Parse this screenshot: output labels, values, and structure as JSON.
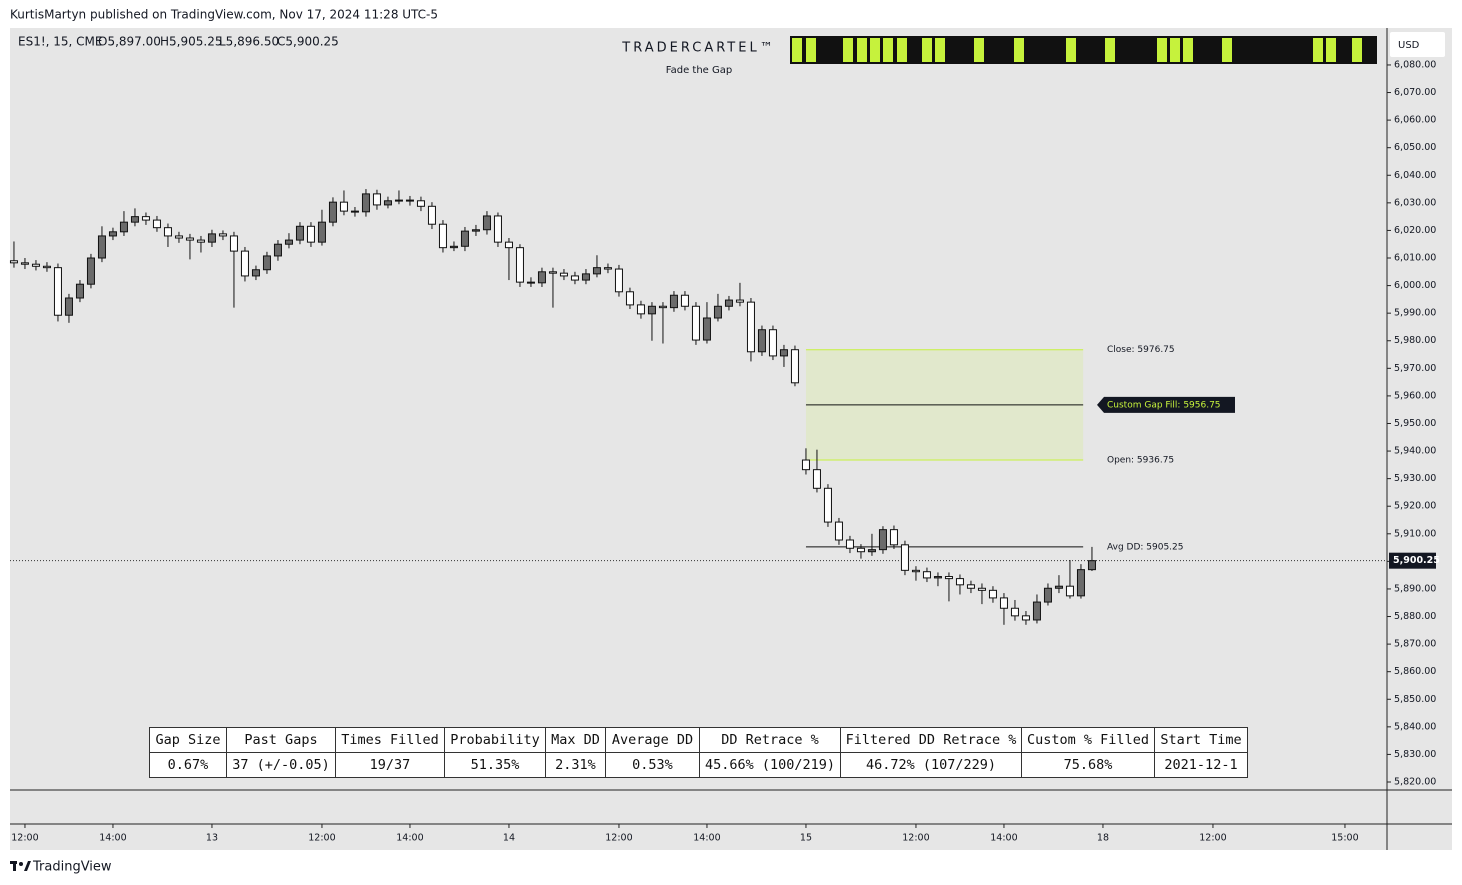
{
  "header": {
    "published": "KurtisMartyn published on TradingView.com, Nov 17, 2024 11:28 UTC-5",
    "brand": "TradingView"
  },
  "chart_data": {
    "type": "candlestick",
    "symbol": "ES1!, 15, CME",
    "ohlc_legend": [
      "O5,897.00",
      "H5,905.25",
      "L5,896.50",
      "C5,900.25"
    ],
    "indicator_title": "TRADERCARTEL™",
    "indicator_subtitle": "Fade the Gap",
    "currency": "USD",
    "up_color": "#6b6b6b",
    "down_color": "#ffffff",
    "zone_color": "#e1e8cc",
    "zone_border": "#c6f23c",
    "open": [
      6009.0,
      6008.25,
      6007.75,
      6007.0,
      6006.5,
      5989.25,
      5995.5,
      6000.5,
      6010.0,
      6018.0,
      6019.5,
      6023.0,
      6025.0,
      6023.75,
      6021.0,
      6018.0,
      6017.25,
      6016.5,
      6015.75,
      6018.75,
      6018.0,
      6012.5,
      6003.5,
      6005.75,
      6010.75,
      6015.0,
      6016.5,
      6021.5,
      6015.75,
      6023.0,
      6030.25,
      6027.0,
      6026.75,
      6033.25,
      6029.25,
      6030.75,
      6031.0,
      6030.75,
      6028.75,
      6022.25,
      6013.75,
      6014.25,
      6019.75,
      6020.25,
      6025.25,
      6015.75,
      6013.75,
      6001.25,
      6001.0,
      6005.0,
      6004.5,
      6003.5,
      6002.0,
      6004.25,
      6006.5,
      6006.0,
      5997.75,
      5993.0,
      5989.75,
      5992.5,
      5992.0,
      5996.5,
      5992.5,
      5980.25,
      5988.25,
      5992.5,
      5994.75,
      5994.0,
      5976.0,
      5984.0,
      5974.5,
      5976.75,
      5936.75,
      5933.25,
      5926.5,
      5914.25,
      5907.75,
      5904.75,
      5903.5,
      5904.25,
      5911.5,
      5906.0,
      5896.75,
      5896.25,
      5894.0,
      5894.5,
      5893.75,
      5891.5,
      5890.25,
      5889.5,
      5886.75,
      5883.0,
      5880.25,
      5878.75,
      5885.25,
      5890.25,
      5891.0,
      5887.5,
      5897.0
    ],
    "high": [
      6016.0,
      6010.0,
      6009.25,
      6008.5,
      6008.0,
      5997.0,
      6002.0,
      6011.5,
      6021.5,
      6021.0,
      6027.0,
      6028.0,
      6026.5,
      6025.25,
      6022.5,
      6019.5,
      6018.75,
      6018.0,
      6020.25,
      6020.0,
      6019.5,
      6014.0,
      6007.25,
      6012.25,
      6016.5,
      6019.0,
      6023.0,
      6023.0,
      6027.5,
      6032.0,
      6034.5,
      6028.5,
      6035.0,
      6034.75,
      6032.25,
      6034.5,
      6032.5,
      6032.25,
      6030.25,
      6023.75,
      6016.0,
      6021.25,
      6022.0,
      6027.0,
      6026.5,
      6017.25,
      6015.0,
      6003.0,
      6006.5,
      6006.5,
      6006.0,
      6005.0,
      6006.0,
      6011.0,
      6008.0,
      6007.5,
      5999.25,
      5994.5,
      5994.0,
      5994.0,
      5998.0,
      5998.0,
      5994.0,
      5994.0,
      5997.0,
      5996.25,
      6001.0,
      5995.5,
      5985.5,
      5985.5,
      5978.5,
      5978.25,
      5941.0,
      5940.5,
      5928.0,
      5915.75,
      5909.25,
      5906.25,
      5910.0,
      5912.75,
      5913.0,
      5907.5,
      5898.25,
      5897.75,
      5896.0,
      5896.0,
      5895.25,
      5893.0,
      5892.0,
      5891.0,
      5888.5,
      5886.0,
      5882.0,
      5888.0,
      5892.0,
      5895.0,
      5900.5,
      5899.0,
      5905.25
    ],
    "low": [
      6006.5,
      6006.0,
      6005.5,
      6005.0,
      5987.0,
      5986.5,
      5994.0,
      5999.0,
      6008.5,
      6016.5,
      6018.0,
      6021.5,
      6022.0,
      6019.5,
      6014.0,
      6015.5,
      6009.5,
      6012.0,
      6014.0,
      6016.5,
      5992.0,
      6001.5,
      6002.0,
      6004.25,
      6009.0,
      6013.5,
      6015.0,
      6014.0,
      6014.5,
      6021.5,
      6025.5,
      6025.0,
      6025.0,
      6027.5,
      6028.0,
      6029.5,
      6029.0,
      6027.0,
      6020.5,
      6012.0,
      6012.5,
      6012.5,
      6018.0,
      6018.5,
      6014.0,
      6002.0,
      5999.5,
      5999.5,
      5999.5,
      5992.0,
      6002.0,
      6000.5,
      6000.5,
      6003.0,
      6004.5,
      5996.0,
      5991.5,
      5988.0,
      5980.0,
      5979.0,
      5990.5,
      5991.0,
      5978.5,
      5979.0,
      5987.0,
      5991.0,
      5992.5,
      5972.5,
      5974.5,
      5973.0,
      5970.5,
      5963.5,
      5931.5,
      5925.0,
      5912.5,
      5906.0,
      5903.0,
      5901.0,
      5902.0,
      5902.75,
      5904.5,
      5895.0,
      5893.0,
      5892.5,
      5891.0,
      5885.5,
      5888.0,
      5888.5,
      5884.5,
      5885.0,
      5877.0,
      5878.5,
      5877.0,
      5877.5,
      5884.0,
      5888.5,
      5886.5,
      5886.5,
      5896.5
    ],
    "close": [
      6008.25,
      6007.75,
      6007.0,
      6006.5,
      5989.25,
      5995.5,
      6000.5,
      6010.0,
      6018.0,
      6019.5,
      6023.0,
      6025.0,
      6023.75,
      6021.0,
      6018.0,
      6017.25,
      6016.5,
      6015.75,
      6018.75,
      6018.0,
      6012.5,
      6003.5,
      6005.75,
      6010.75,
      6015.0,
      6016.5,
      6021.5,
      6015.75,
      6023.0,
      6030.25,
      6027.0,
      6026.75,
      6033.25,
      6029.25,
      6030.75,
      6031.0,
      6030.75,
      6028.75,
      6022.25,
      6013.75,
      6014.25,
      6019.75,
      6020.25,
      6025.25,
      6015.75,
      6013.75,
      6001.25,
      6001.0,
      6005.0,
      6004.5,
      6003.5,
      6002.0,
      6004.25,
      6006.5,
      6006.0,
      5997.75,
      5993.0,
      5989.75,
      5992.5,
      5992.0,
      5996.5,
      5992.5,
      5980.25,
      5988.25,
      5992.5,
      5994.75,
      5994.0,
      5976.0,
      5984.0,
      5974.5,
      5976.75,
      5964.75,
      5933.25,
      5926.5,
      5914.25,
      5907.75,
      5904.75,
      5903.5,
      5904.25,
      5911.5,
      5906.0,
      5896.75,
      5896.25,
      5894.0,
      5894.5,
      5893.75,
      5891.5,
      5890.25,
      5889.5,
      5886.75,
      5883.0,
      5880.25,
      5878.75,
      5885.25,
      5890.25,
      5891.0,
      5887.5,
      5897.0,
      5900.25
    ],
    "xlim": [
      -0.36,
      124.64
    ],
    "xticks": [
      {
        "value": 1,
        "label": "12:00"
      },
      {
        "value": 9,
        "label": "14:00"
      },
      {
        "value": 18,
        "label": "13"
      },
      {
        "value": 28,
        "label": "12:00"
      },
      {
        "value": 36,
        "label": "14:00"
      },
      {
        "value": 45,
        "label": "14"
      },
      {
        "value": 55,
        "label": "12:00"
      },
      {
        "value": 63,
        "label": "14:00"
      },
      {
        "value": 72,
        "label": "15"
      },
      {
        "value": 82,
        "label": "12:00"
      },
      {
        "value": 90,
        "label": "14:00"
      },
      {
        "value": 99,
        "label": "18"
      },
      {
        "value": 109,
        "label": "12:00"
      },
      {
        "value": 121,
        "label": "15:00"
      }
    ],
    "ylim": [
      5817.1,
      6093.4
    ],
    "yticks": [
      {
        "value": 5820,
        "label": "5,820.00"
      },
      {
        "value": 5830,
        "label": "5,830.00"
      },
      {
        "value": 5840,
        "label": "5,840.00"
      },
      {
        "value": 5850,
        "label": "5,850.00"
      },
      {
        "value": 5860,
        "label": "5,860.00"
      },
      {
        "value": 5870,
        "label": "5,870.00"
      },
      {
        "value": 5880,
        "label": "5,880.00"
      },
      {
        "value": 5890,
        "label": "5,890.00"
      },
      {
        "value": 5900,
        "label": "5,900.00"
      },
      {
        "value": 5910,
        "label": "5,910.00"
      },
      {
        "value": 5920,
        "label": "5,920.00"
      },
      {
        "value": 5930,
        "label": "5,930.00"
      },
      {
        "value": 5940,
        "label": "5,940.00"
      },
      {
        "value": 5950,
        "label": "5,950.00"
      },
      {
        "value": 5960,
        "label": "5,960.00"
      },
      {
        "value": 5970,
        "label": "5,970.00"
      },
      {
        "value": 5980,
        "label": "5,980.00"
      },
      {
        "value": 5990,
        "label": "5,990.00"
      },
      {
        "value": 6000,
        "label": "6,000.00"
      },
      {
        "value": 6010,
        "label": "6,010.00"
      },
      {
        "value": 6020,
        "label": "6,020.00"
      },
      {
        "value": 6030,
        "label": "6,030.00"
      },
      {
        "value": 6040,
        "label": "6,040.00"
      },
      {
        "value": 6050,
        "label": "6,050.00"
      },
      {
        "value": 6060,
        "label": "6,060.00"
      },
      {
        "value": 6070,
        "label": "6,070.00"
      },
      {
        "value": 6080,
        "label": "6,080.00"
      }
    ],
    "last_price": {
      "value": 5900.25,
      "label": "5,900.25"
    },
    "levels": [
      {
        "label": "Close: 5976.75",
        "value": 5976.75
      },
      {
        "label": "Custom Gap Fill: 5956.75",
        "value": 5956.75
      },
      {
        "label": "Open: 5936.75",
        "value": 5936.75
      },
      {
        "label": "Avg DD: 5905.25",
        "value": 5905.25
      }
    ]
  },
  "table": {
    "headers": [
      "Gap Size",
      "Past Gaps",
      "Times Filled",
      "Probability",
      "Max DD",
      "Average DD",
      "DD Retrace %",
      "Filtered DD Retrace %",
      "Custom % Filled",
      "Start Time"
    ],
    "rows": [
      [
        "0.67%",
        "37 (+/-0.05)",
        "19/37",
        "51.35%",
        "2.31%",
        "0.53%",
        "45.66% (100/219)",
        "46.72% (107/229)",
        "75.68%",
        "2021-12-1"
      ]
    ]
  }
}
